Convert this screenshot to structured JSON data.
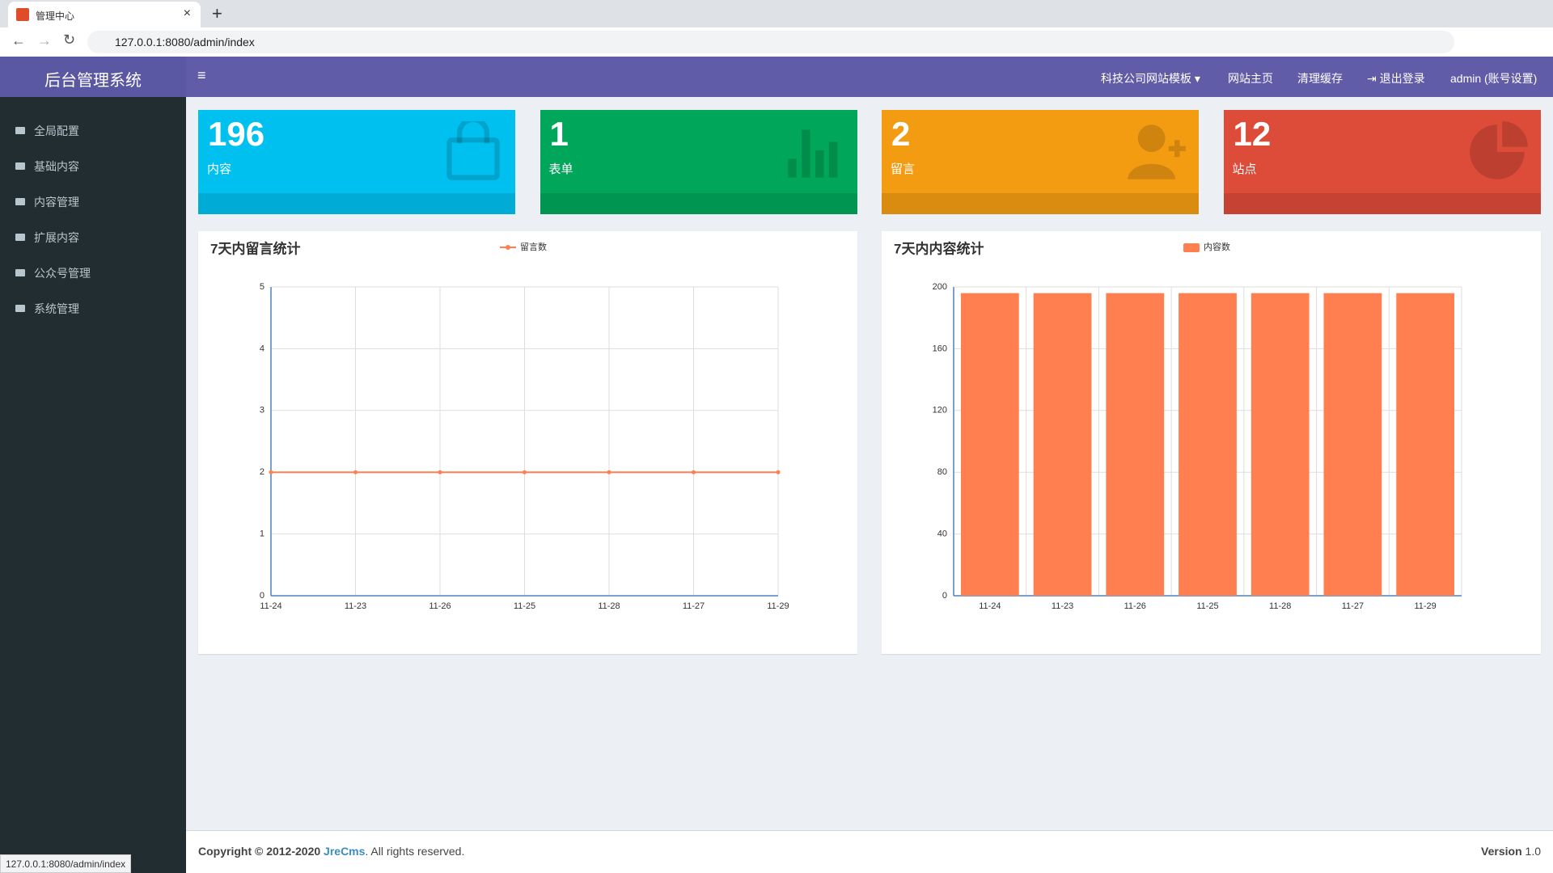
{
  "browser": {
    "tab_title": "管理中心",
    "url": "127.0.0.1:8080/admin/index"
  },
  "header": {
    "brand": "后台管理系统",
    "nav": [
      "科技公司网站模板",
      "网站主页",
      "清理缓存",
      "退出登录",
      "admin (账号设置)"
    ]
  },
  "sidebar": {
    "menu": [
      "全局配置",
      "基础内容",
      "内容管理",
      "扩展内容",
      "公众号管理",
      "系统管理"
    ]
  },
  "stats": [
    {
      "value": 196,
      "label": "内容",
      "color": "#00c0ef"
    },
    {
      "value": 1,
      "label": "表单",
      "color": "#00a65a"
    },
    {
      "value": 2,
      "label": "留言",
      "color": "#f39c12"
    },
    {
      "value": 12,
      "label": "站点",
      "color": "#dd4b39"
    }
  ],
  "chart_data": [
    {
      "type": "line",
      "title": "7天内留言统计",
      "categories": [
        "11-24",
        "11-23",
        "11-26",
        "11-25",
        "11-28",
        "11-27",
        "11-29"
      ],
      "series": [
        {
          "name": "留言数",
          "color": "#ff7f50",
          "values": [
            2,
            2,
            2,
            2,
            2,
            2,
            2
          ]
        }
      ],
      "ylim": [
        0,
        5
      ],
      "yticks": [
        0,
        1,
        2,
        3,
        4,
        5
      ],
      "grid": true
    },
    {
      "type": "bar",
      "title": "7天内内容统计",
      "categories": [
        "11-24",
        "11-23",
        "11-26",
        "11-25",
        "11-28",
        "11-27",
        "11-29"
      ],
      "series": [
        {
          "name": "内容数",
          "color": "#ff7f50",
          "values": [
            196,
            196,
            196,
            196,
            196,
            196,
            196
          ]
        }
      ],
      "ylim": [
        0,
        200
      ],
      "yticks": [
        0,
        40,
        80,
        120,
        160,
        200
      ],
      "grid": true
    }
  ],
  "footer": {
    "copyright": "Copyright © 2012-2020",
    "link": "JreCms",
    "rights": ". All rights reserved.",
    "version_label": "Version",
    "version": "1.0"
  },
  "status_bar": "127.0.0.1:8080/admin/index"
}
